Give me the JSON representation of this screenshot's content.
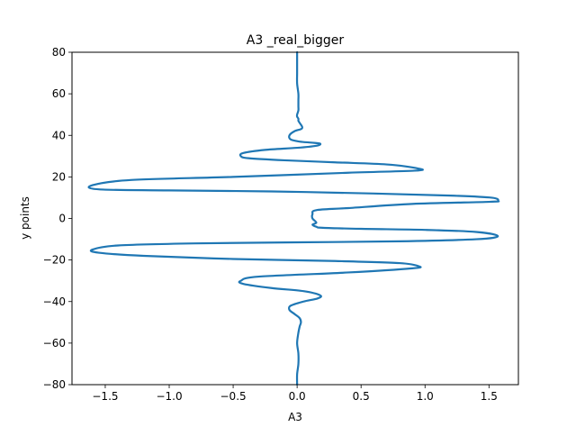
{
  "chart_data": {
    "type": "line",
    "title": "A3 _real_bigger",
    "xlabel": "A3",
    "ylabel": "y points",
    "xlim": [
      -1.76,
      1.73
    ],
    "ylim": [
      -80,
      80
    ],
    "xticks": [
      -1.5,
      -1.0,
      -0.5,
      0.0,
      0.5,
      1.0,
      1.5
    ],
    "xtick_labels": [
      "−1.5",
      "−1.0",
      "−0.5",
      "0.0",
      "0.5",
      "1.0",
      "1.5"
    ],
    "yticks": [
      -80,
      -60,
      -40,
      -20,
      0,
      20,
      40,
      60,
      80
    ],
    "ytick_labels": [
      "−80",
      "−60",
      "−40",
      "−20",
      "0",
      "20",
      "40",
      "60",
      "80"
    ],
    "grid": false,
    "line_color": "#1f77b4",
    "series": [
      {
        "x": [
          0.0,
          0.0,
          0.0,
          0.0,
          0.01,
          0.01,
          0.01,
          0.01,
          0.0,
          0.0,
          0.01,
          0.01,
          0.02,
          0.04,
          0.03,
          -0.02,
          -0.06,
          -0.05,
          0.02,
          0.11,
          0.18,
          0.15,
          0.0,
          -0.25,
          -0.42,
          -0.44,
          -0.38,
          -0.1,
          0.3,
          0.7,
          0.95,
          0.92,
          0.4,
          -0.5,
          -1.3,
          -1.6,
          -1.55,
          -1.0,
          -0.2,
          0.6,
          1.2,
          1.52,
          1.57,
          1.5,
          0.9,
          0.4,
          0.15,
          0.12,
          0.12,
          0.15,
          0.12,
          0.15,
          0.2,
          0.5,
          1.0,
          1.4,
          1.57,
          1.4,
          0.8,
          0.0,
          -0.8,
          -1.4,
          -1.6,
          -1.55,
          -1.2,
          -0.5,
          0.3,
          0.8,
          0.95,
          0.9,
          0.4,
          -0.3,
          -0.44,
          -0.42,
          -0.2,
          0.05,
          0.18,
          0.16,
          0.05,
          -0.05,
          -0.06,
          -0.02,
          0.02,
          0.03,
          0.02,
          0.01,
          0.0,
          0.01,
          0.01,
          0.0,
          0.0
        ],
        "y": [
          80,
          75,
          70,
          65,
          60,
          57,
          54,
          52,
          50,
          49,
          48,
          47,
          46,
          44,
          43,
          42,
          40,
          38,
          37,
          36.5,
          36,
          35,
          34,
          33,
          31.5,
          30,
          29,
          28,
          27,
          26,
          24,
          23,
          22,
          20,
          18.5,
          16,
          14,
          13.5,
          13,
          12,
          11,
          10,
          8.5,
          8,
          7,
          5,
          4,
          2,
          0,
          -2,
          -3,
          -4,
          -4.5,
          -5,
          -5.5,
          -6.5,
          -8.5,
          -10,
          -11,
          -11.5,
          -12,
          -13,
          -15,
          -16.5,
          -18,
          -19.5,
          -20.5,
          -21.5,
          -23,
          -24,
          -26,
          -28,
          -30,
          -31.5,
          -33.5,
          -35,
          -37,
          -38.5,
          -40,
          -42,
          -44,
          -46,
          -48,
          -50,
          -52,
          -55,
          -60,
          -65,
          -70,
          -75,
          -80
        ]
      }
    ]
  }
}
